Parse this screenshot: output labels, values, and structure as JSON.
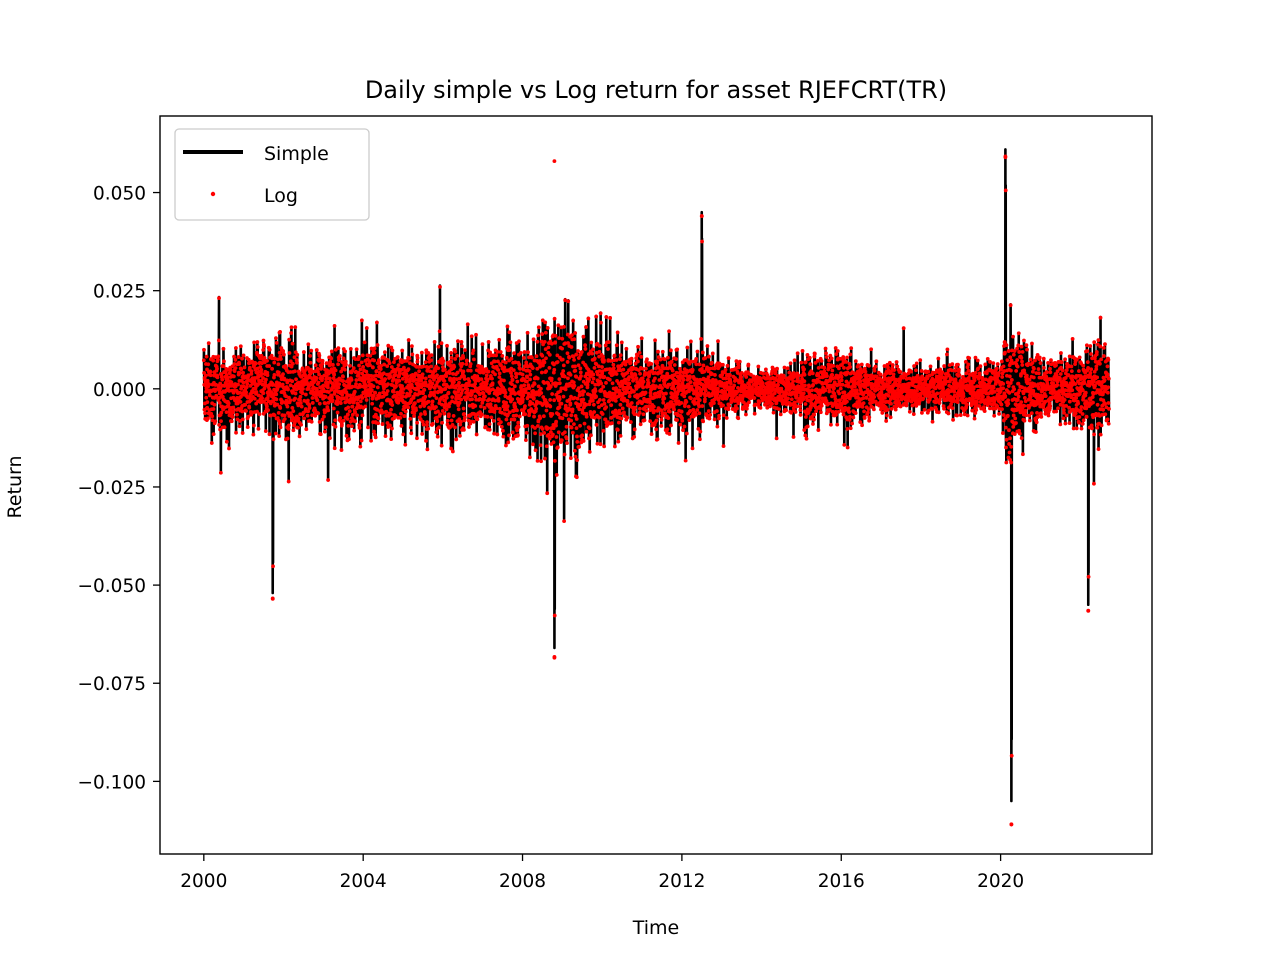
{
  "chart_data": {
    "type": "line",
    "title": "Daily simple vs Log return for asset RJEFCRT(TR)",
    "xlabel": "Time",
    "ylabel": "Return",
    "xlim": [
      1998.9,
      2023.8
    ],
    "ylim": [
      -0.1185,
      0.0695
    ],
    "x_ticks": [
      {
        "value": 2000,
        "label": "2000"
      },
      {
        "value": 2004,
        "label": "2004"
      },
      {
        "value": 2008,
        "label": "2008"
      },
      {
        "value": 2012,
        "label": "2012"
      },
      {
        "value": 2016,
        "label": "2016"
      },
      {
        "value": 2020,
        "label": "2020"
      }
    ],
    "y_ticks": [
      {
        "value": 0.05,
        "label": "0.050"
      },
      {
        "value": 0.025,
        "label": "0.025"
      },
      {
        "value": 0.0,
        "label": "0.000"
      },
      {
        "value": -0.025,
        "label": "−0.025"
      },
      {
        "value": -0.05,
        "label": "−0.050"
      },
      {
        "value": -0.075,
        "label": "−0.075"
      },
      {
        "value": -0.1,
        "label": "−0.100"
      }
    ],
    "grid": false,
    "legend_position": "top-left",
    "series": [
      {
        "name": "Simple",
        "style": "line",
        "color": "#000000"
      },
      {
        "name": "Log",
        "style": "points",
        "color": "#ff0000"
      }
    ],
    "extremes": [
      {
        "x": 2001.73,
        "simple": -0.052,
        "log": -0.0535
      },
      {
        "x": 2008.8,
        "simple": 0.059,
        "log": 0.058
      },
      {
        "x": 2008.8,
        "simple": -0.066,
        "log": -0.0685
      },
      {
        "x": 2012.5,
        "simple": 0.045,
        "log": 0.044
      },
      {
        "x": 2020.12,
        "simple": 0.061,
        "log": 0.059
      },
      {
        "x": 2020.27,
        "simple": -0.105,
        "log": -0.111
      },
      {
        "x": 2022.2,
        "simple": -0.055,
        "log": -0.0565
      }
    ],
    "volatility_envelope": [
      [
        2000.0,
        0.0125
      ],
      [
        2001.0,
        0.0115
      ],
      [
        2001.8,
        0.014
      ],
      [
        2003.0,
        0.0115
      ],
      [
        2004.0,
        0.0125
      ],
      [
        2005.0,
        0.012
      ],
      [
        2006.0,
        0.0135
      ],
      [
        2007.0,
        0.0115
      ],
      [
        2007.6,
        0.0125
      ],
      [
        2008.3,
        0.017
      ],
      [
        2008.9,
        0.026
      ],
      [
        2009.5,
        0.017
      ],
      [
        2010.5,
        0.012
      ],
      [
        2011.5,
        0.013
      ],
      [
        2012.5,
        0.011
      ],
      [
        2013.0,
        0.0075
      ],
      [
        2014.0,
        0.0055
      ],
      [
        2014.5,
        0.0065
      ],
      [
        2015.0,
        0.0105
      ],
      [
        2016.0,
        0.011
      ],
      [
        2017.0,
        0.007
      ],
      [
        2018.0,
        0.0065
      ],
      [
        2019.0,
        0.0075
      ],
      [
        2020.0,
        0.007
      ],
      [
        2020.25,
        0.025
      ],
      [
        2020.6,
        0.013
      ],
      [
        2021.0,
        0.009
      ],
      [
        2022.0,
        0.011
      ],
      [
        2022.3,
        0.015
      ],
      [
        2022.7,
        0.0125
      ]
    ]
  }
}
